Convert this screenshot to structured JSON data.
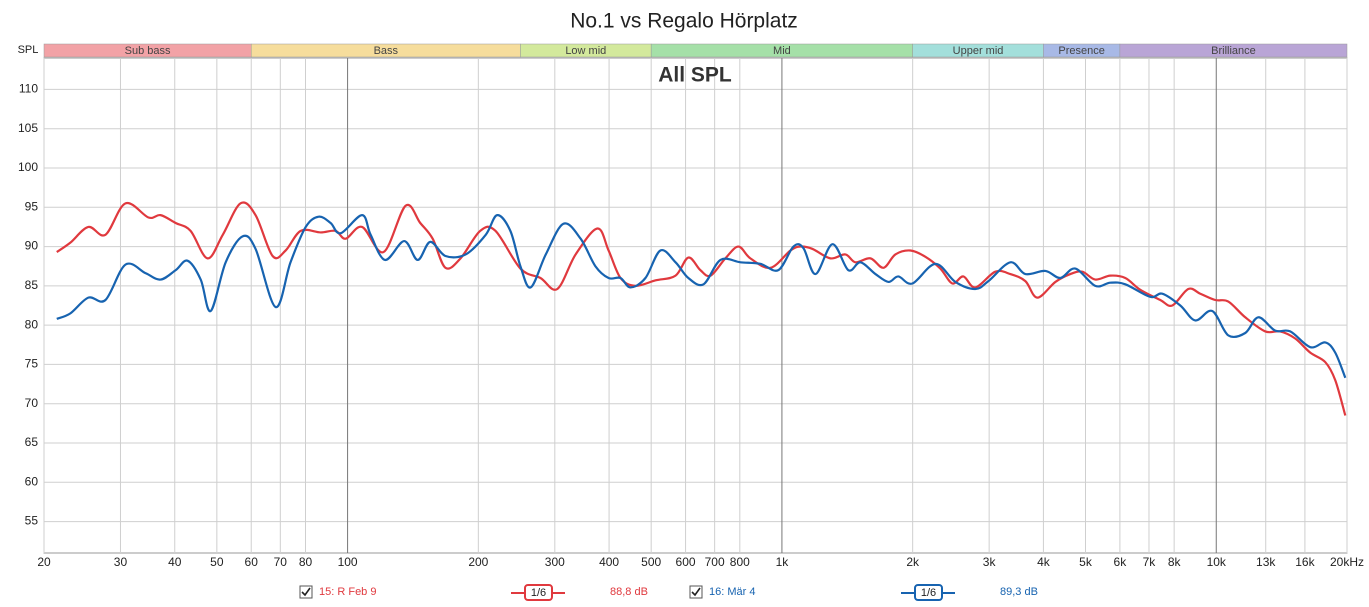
{
  "chart_data": {
    "type": "line",
    "title": "No.1 vs Regalo Hörplatz",
    "y_label": "SPL",
    "annotation": "All SPL",
    "xscale": "log",
    "grid": true,
    "xlim": [
      20,
      20000
    ],
    "ylim": [
      51,
      114
    ],
    "yticks": [
      55,
      60,
      65,
      70,
      75,
      80,
      85,
      90,
      95,
      100,
      105,
      110
    ],
    "xticks": [
      20,
      30,
      40,
      50,
      60,
      70,
      80,
      100,
      200,
      300,
      400,
      500,
      600,
      700,
      800,
      {
        "value": 1000,
        "label": "1k"
      },
      {
        "value": 2000,
        "label": "2k"
      },
      {
        "value": 3000,
        "label": "3k"
      },
      {
        "value": 4000,
        "label": "4k"
      },
      {
        "value": 5000,
        "label": "5k"
      },
      {
        "value": 6000,
        "label": "6k"
      },
      {
        "value": 7000,
        "label": "7k"
      },
      {
        "value": 8000,
        "label": "8k"
      },
      {
        "value": 10000,
        "label": "10k"
      },
      {
        "value": 13000,
        "label": "13k"
      },
      {
        "value": 16000,
        "label": "16k"
      },
      {
        "value": 20000,
        "label": "20kHz"
      }
    ],
    "bands": [
      {
        "name": "Sub bass",
        "from": 20,
        "to": 60,
        "color": "#f2a2a6"
      },
      {
        "name": "Bass",
        "from": 60,
        "to": 250,
        "color": "#f6dd9c"
      },
      {
        "name": "Low mid",
        "from": 250,
        "to": 500,
        "color": "#d3e99c"
      },
      {
        "name": "Mid",
        "from": 500,
        "to": 2000,
        "color": "#a5e0a8"
      },
      {
        "name": "Upper mid",
        "from": 2000,
        "to": 4000,
        "color": "#a3dfdb"
      },
      {
        "name": "Presence",
        "from": 4000,
        "to": 6000,
        "color": "#a8b9e6"
      },
      {
        "name": "Brilliance",
        "from": 6000,
        "to": 20000,
        "color": "#b9a5d6"
      }
    ],
    "series": [
      {
        "name": "15: R Feb 9",
        "smoothing": "1/6",
        "level": "88,8 dB",
        "color": "#e0393e",
        "x": [
          21.4,
          23.0,
          25.3,
          27.7,
          30.8,
          34.8,
          37.1,
          40.2,
          43.5,
          47.6,
          51.6,
          56.7,
          61.4,
          67.2,
          72.0,
          78.0,
          86.7,
          93.8,
          99,
          108,
          121,
          136,
          147,
          157,
          168,
          182,
          202,
          219,
          250,
          278,
          304,
          335,
          376,
          399,
          425,
          460,
          512,
          569,
          609,
          649,
          685,
          741,
          794,
          846,
          941,
          1046,
          1103,
          1176,
          1293,
          1400,
          1476,
          1599,
          1713,
          1825,
          1976,
          2140,
          2316,
          2469,
          2617,
          2788,
          3099,
          3357,
          3635,
          3873,
          4262,
          4613,
          4915,
          5266,
          5702,
          6174,
          6686,
          7432,
          7921,
          8621,
          9189,
          9948,
          10660,
          11660,
          12970,
          14040,
          15200,
          16460,
          17820,
          18790,
          19820
        ],
        "values": [
          89.3,
          90.5,
          92.5,
          91.5,
          95.5,
          93.7,
          94,
          93,
          92,
          88.5,
          91.5,
          95.5,
          94,
          88.8,
          89.5,
          92,
          91.8,
          92,
          91,
          92.5,
          89.3,
          95.2,
          93,
          91,
          87.3,
          88.5,
          92,
          92,
          87.2,
          86,
          84.6,
          89,
          92.3,
          89.5,
          86,
          85,
          85.7,
          86.3,
          88.6,
          87,
          86.3,
          88.5,
          90,
          88.5,
          87.3,
          89.5,
          90,
          89.7,
          88.5,
          89,
          88,
          88.5,
          87.3,
          89,
          89.5,
          88.7,
          87.2,
          85.3,
          86.2,
          84.8,
          86.8,
          86.5,
          85.6,
          83.5,
          85.5,
          86.5,
          86.8,
          85.8,
          86.3,
          86,
          84.5,
          83.2,
          82.5,
          84.6,
          84,
          83.2,
          83,
          81,
          79.2,
          79.2,
          78.3,
          76.5,
          75.3,
          73,
          68.5
        ]
      },
      {
        "name": "16: Mär 4",
        "smoothing": "1/6",
        "level": "89,3 dB",
        "color": "#1763b0",
        "x": [
          21.4,
          23.0,
          25.3,
          27.7,
          30.8,
          34.3,
          37.1,
          40.2,
          42.8,
          45.9,
          48.4,
          52.4,
          57.3,
          61.4,
          68.3,
          73.9,
          80.1,
          85.8,
          91.4,
          96.4,
          108,
          113,
          122,
          135,
          145,
          155,
          168,
          187,
          208,
          221,
          237,
          250,
          264,
          286,
          314,
          344,
          372,
          399,
          425,
          448,
          485,
          525,
          569,
          609,
          660,
          722,
          803,
          892,
          981,
          1063,
          1121,
          1195,
          1307,
          1422,
          1516,
          1642,
          1759,
          1854,
          1997,
          2256,
          2508,
          2788,
          2988,
          3357,
          3635,
          4041,
          4375,
          4737,
          5266,
          5702,
          6174,
          7049,
          7511,
          8264,
          8949,
          9790,
          10660,
          11660,
          12500,
          13670,
          14800,
          16460,
          17820,
          18790,
          19820
        ],
        "values": [
          80.8,
          81.5,
          83.5,
          83.2,
          87.7,
          86.6,
          85.8,
          87,
          88.2,
          85.8,
          81.8,
          88,
          91.3,
          89.7,
          82.3,
          88,
          92.5,
          93.8,
          93,
          91.7,
          94,
          91.5,
          88.3,
          90.7,
          88.3,
          90.6,
          88.8,
          89,
          91.5,
          94,
          92,
          87.5,
          84.8,
          89,
          92.9,
          91,
          87.5,
          86,
          86,
          84.8,
          86,
          89.5,
          88,
          86,
          85.2,
          88.3,
          88,
          87.8,
          87,
          90,
          89.8,
          86.5,
          90.3,
          87,
          88,
          86.5,
          85.5,
          86.2,
          85.3,
          87.8,
          85.5,
          84.6,
          85.6,
          88,
          86.5,
          86.9,
          86,
          87.2,
          85,
          85.4,
          85.2,
          83.6,
          84,
          82.5,
          80.6,
          81.8,
          78.7,
          79,
          81,
          79.3,
          79.2,
          77.2,
          77.8,
          76.5,
          73.3
        ]
      }
    ]
  }
}
